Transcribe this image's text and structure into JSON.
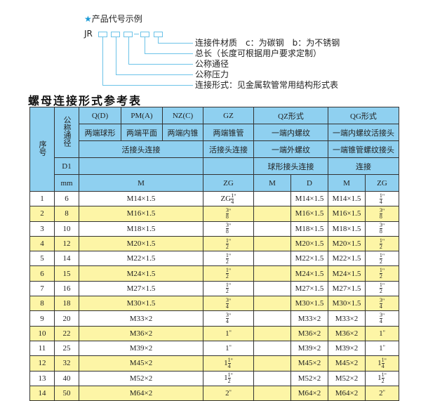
{
  "legend": {
    "heading": "产品代号示例",
    "star_icon": "star-icon",
    "code_prefix": "JR",
    "items": [
      "连接件材质　c：为碳钢　b：为不锈钢",
      "总长（长度可根据用户要求定制）",
      "公称通径",
      "公称压力",
      "连接形式：见金属软管常用结构形式表"
    ]
  },
  "title": "螺母连接形式参考表",
  "colors": {
    "header": "#8fd0f0",
    "row_alt": "#fdf5a6",
    "line": "#6cc3e8"
  },
  "header": {
    "seq": "序号",
    "nominal": "公称通径",
    "d1": "D1",
    "mm": "mm",
    "types": [
      "Q(D)",
      "PM(A)",
      "NZ(C)",
      "GZ",
      "QZ形式",
      "QG形式"
    ],
    "desc": [
      "两端球形",
      "两端平面",
      "两端内锥",
      "两端锥管",
      "一端内螺纹",
      "一端内螺纹活接头"
    ],
    "conn": [
      "活接头连接",
      "活接头连接",
      "一端外螺纹",
      "一端锥管螺纹接头"
    ],
    "conn2": [
      "球形接头连接",
      "连接"
    ],
    "units": [
      "M",
      "ZG",
      "M",
      "D",
      "M",
      "ZG"
    ]
  },
  "rows": [
    {
      "no": "1",
      "dn": "6",
      "m": "M14×1.5",
      "zg": {
        "p": "ZG",
        "w": "",
        "n": "1",
        "d": "4"
      },
      "qzm": "",
      "qzd": "M14×1.5",
      "qgm": "M14×1.5",
      "qgzg": {
        "p": "",
        "w": "",
        "n": "1",
        "d": "4"
      }
    },
    {
      "no": "2",
      "dn": "8",
      "m": "M16×1.5",
      "zg": {
        "p": "",
        "w": "",
        "n": "3",
        "d": "8"
      },
      "qzm": "",
      "qzd": "M16×1.5",
      "qgm": "M16×1.5",
      "qgzg": {
        "p": "",
        "w": "",
        "n": "3",
        "d": "8"
      }
    },
    {
      "no": "3",
      "dn": "10",
      "m": "M18×1.5",
      "zg": {
        "p": "",
        "w": "",
        "n": "3",
        "d": "8"
      },
      "qzm": "",
      "qzd": "M18×1.5",
      "qgm": "M18×1.5",
      "qgzg": {
        "p": "",
        "w": "",
        "n": "3",
        "d": "8"
      }
    },
    {
      "no": "4",
      "dn": "12",
      "m": "M20×1.5",
      "zg": {
        "p": "",
        "w": "",
        "n": "1",
        "d": "2"
      },
      "qzm": "",
      "qzd": "M20×1.5",
      "qgm": "M20×1.5",
      "qgzg": {
        "p": "",
        "w": "",
        "n": "1",
        "d": "2"
      }
    },
    {
      "no": "5",
      "dn": "14",
      "m": "M22×1.5",
      "zg": {
        "p": "",
        "w": "",
        "n": "1",
        "d": "2"
      },
      "qzm": "",
      "qzd": "M22×1.5",
      "qgm": "M22×1.5",
      "qgzg": {
        "p": "",
        "w": "",
        "n": "1",
        "d": "2"
      }
    },
    {
      "no": "6",
      "dn": "15",
      "m": "M24×1.5",
      "zg": {
        "p": "",
        "w": "",
        "n": "1",
        "d": "2"
      },
      "qzm": "",
      "qzd": "M24×1.5",
      "qgm": "M24×1.5",
      "qgzg": {
        "p": "",
        "w": "",
        "n": "1",
        "d": "2"
      }
    },
    {
      "no": "7",
      "dn": "16",
      "m": "M27×1.5",
      "zg": {
        "p": "",
        "w": "",
        "n": "1",
        "d": "2"
      },
      "qzm": "",
      "qzd": "M27×1.5",
      "qgm": "M27×1.5",
      "qgzg": {
        "p": "",
        "w": "",
        "n": "1",
        "d": "2"
      }
    },
    {
      "no": "8",
      "dn": "18",
      "m": "M30×1.5",
      "zg": {
        "p": "",
        "w": "",
        "n": "3",
        "d": "4"
      },
      "qzm": "",
      "qzd": "M30×1.5",
      "qgm": "M30×1.5",
      "qgzg": {
        "p": "",
        "w": "",
        "n": "3",
        "d": "4"
      }
    },
    {
      "no": "9",
      "dn": "20",
      "m": "M33×2",
      "zg": {
        "p": "",
        "w": "",
        "n": "3",
        "d": "4"
      },
      "qzm": "",
      "qzd": "M33×2",
      "qgm": "M33×2",
      "qgzg": {
        "p": "",
        "w": "",
        "n": "3",
        "d": "4"
      }
    },
    {
      "no": "10",
      "dn": "22",
      "m": "M36×2",
      "zg": {
        "p": "",
        "w": "1",
        "n": "",
        "d": ""
      },
      "qzm": "",
      "qzd": "M36×2",
      "qgm": "M36×2",
      "qgzg": {
        "p": "",
        "w": "1",
        "n": "",
        "d": ""
      }
    },
    {
      "no": "11",
      "dn": "25",
      "m": "M39×2",
      "zg": {
        "p": "",
        "w": "1",
        "n": "",
        "d": ""
      },
      "qzm": "",
      "qzd": "M39×2",
      "qgm": "M39×2",
      "qgzg": {
        "p": "",
        "w": "1",
        "n": "",
        "d": ""
      }
    },
    {
      "no": "12",
      "dn": "32",
      "m": "M45×2",
      "zg": {
        "p": "",
        "w": "1",
        "n": "1",
        "d": "4"
      },
      "qzm": "",
      "qzd": "M45×2",
      "qgm": "M45×2",
      "qgzg": {
        "p": "",
        "w": "1",
        "n": "1",
        "d": "4"
      }
    },
    {
      "no": "13",
      "dn": "40",
      "m": "M52×2",
      "zg": {
        "p": "",
        "w": "1",
        "n": "1",
        "d": "2"
      },
      "qzm": "",
      "qzd": "M52×2",
      "qgm": "M52×2",
      "qgzg": {
        "p": "",
        "w": "1",
        "n": "1",
        "d": "2"
      }
    },
    {
      "no": "14",
      "dn": "50",
      "m": "M64×2",
      "zg": {
        "p": "",
        "w": "2",
        "n": "",
        "d": ""
      },
      "qzm": "",
      "qzd": "M64×2",
      "qgm": "M64×2",
      "qgzg": {
        "p": "",
        "w": "2",
        "n": "",
        "d": ""
      }
    }
  ],
  "inch_mark": "\""
}
